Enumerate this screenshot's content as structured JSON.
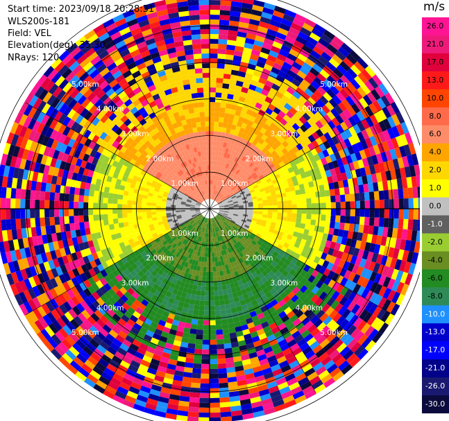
{
  "info": {
    "start_time": "Start time: 2023/09/18 20:28:31",
    "station": "WLS200s-181",
    "field": "Field: VEL",
    "elevation": "Elevation(deg): 35.30",
    "nrays": "NRays: 120"
  },
  "chart_data": {
    "type": "ppi-polar",
    "field": "VEL",
    "nrays": 120,
    "max_range_km": 5.8,
    "ring_ranges_km": [
      0.5,
      1.0,
      1.5,
      2.0,
      2.5,
      3.0
    ],
    "range_labels": [
      "1.00km",
      "2.00km",
      "3.00km",
      "4.00km",
      "5.00km"
    ],
    "colorbar": {
      "unit": "m/s",
      "tick_labels": [
        "26.0",
        "21.0",
        "17.0",
        "13.0",
        "10.0",
        "8.0",
        "6.0",
        "4.0",
        "2.0",
        "1.0",
        "0.0",
        "-1.0",
        "-2.0",
        "-4.0",
        "-6.0",
        "-8.0",
        "-10.0",
        "-13.0",
        "-17.0",
        "-21.0",
        "-26.0",
        "-30.0"
      ],
      "colors": [
        "#ff1493",
        "#ee1a7a",
        "#e0003c",
        "#ff1a1a",
        "#ff4500",
        "#ff6a4a",
        "#ff8c69",
        "#ffa500",
        "#ffd700",
        "#ffff00",
        "#c0c0c0",
        "#606060",
        "#9acd32",
        "#6b8e23",
        "#228b22",
        "#2e8b57",
        "#1e90ff",
        "#0000cd",
        "#0000ff",
        "#00008b",
        "#191970",
        "#0a0a3c"
      ]
    },
    "pattern": {
      "positive_sectors": [
        "N",
        "NE-upper",
        "NW-upper"
      ],
      "zero_band": "E-W",
      "negative_sectors": [
        "S"
      ]
    }
  }
}
